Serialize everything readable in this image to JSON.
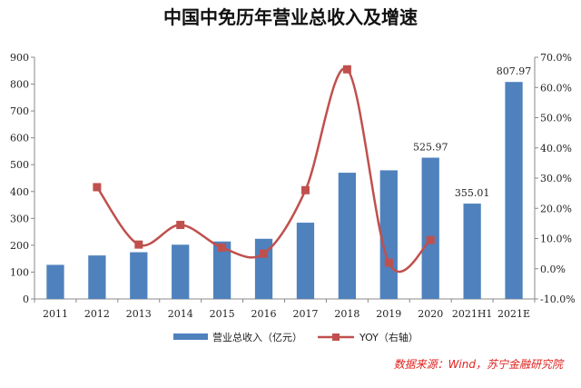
{
  "chart_data": {
    "type": "bar+line",
    "title": "中国中免历年营业总收入及增速",
    "categories": [
      "2011",
      "2012",
      "2013",
      "2014",
      "2015",
      "2016",
      "2017",
      "2018",
      "2019",
      "2020",
      "2021H1",
      "2021E"
    ],
    "series": [
      {
        "name": "营业总收入（亿元）",
        "type": "bar",
        "axis": "left",
        "color": "#4f81bd",
        "values": [
          127,
          162,
          174,
          202,
          214,
          224,
          284,
          470,
          479,
          525.97,
          355.01,
          807.97
        ]
      },
      {
        "name": "YOY（右轴）",
        "type": "line",
        "axis": "right",
        "color": "#c0504d",
        "values": [
          null,
          27.0,
          8.0,
          14.5,
          7.0,
          5.0,
          26.0,
          66.0,
          2.0,
          9.5,
          null,
          null
        ]
      }
    ],
    "data_labels": [
      {
        "index": 9,
        "text": "525.97"
      },
      {
        "index": 10,
        "text": "355.01"
      },
      {
        "index": 11,
        "text": "807.97"
      }
    ],
    "y_left": {
      "min": 0,
      "max": 900,
      "ticks": [
        "0",
        "100",
        "200",
        "300",
        "400",
        "500",
        "600",
        "700",
        "800",
        "900"
      ]
    },
    "y_right": {
      "min": -10,
      "max": 70,
      "ticks": [
        "-10.0%",
        "0.0%",
        "10.0%",
        "20.0%",
        "30.0%",
        "40.0%",
        "50.0%",
        "60.0%",
        "70.0%"
      ]
    },
    "legend_position": "bottom",
    "source": "数据来源：Wind，苏宁金融研究院",
    "grid": false
  }
}
